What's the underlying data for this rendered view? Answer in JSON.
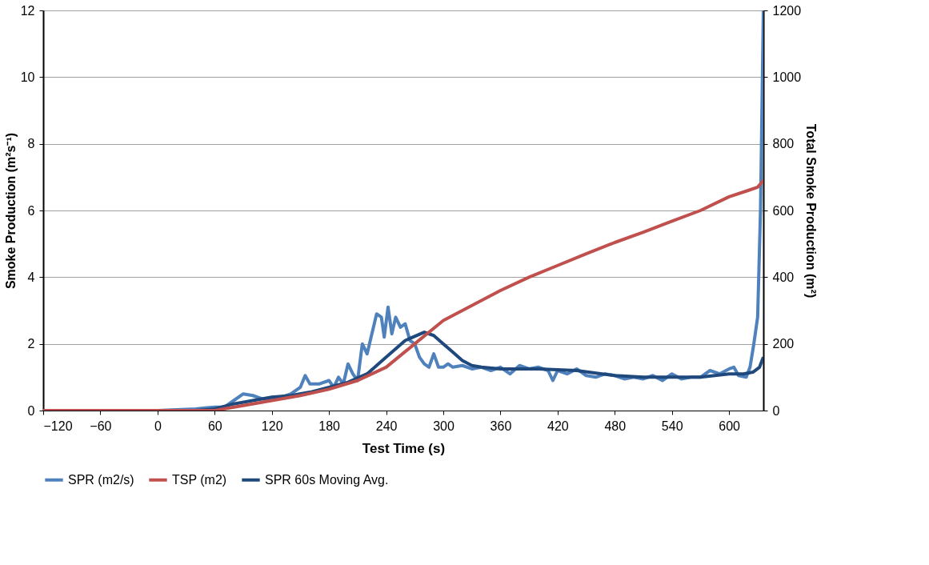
{
  "chart_data": {
    "type": "line",
    "xlabel": "Test Time (s)",
    "ylabel": "Smoke Production (m²s⁻¹)",
    "y2label": "Total Smoke Production (m²)",
    "xlim": [
      -120,
      636
    ],
    "xticks": [
      -120,
      -60,
      0,
      60,
      120,
      180,
      240,
      300,
      360,
      420,
      480,
      540,
      600
    ],
    "ylim": [
      0,
      12
    ],
    "yticks": [
      0,
      2,
      4,
      6,
      8,
      10,
      12
    ],
    "y2lim": [
      0,
      1200
    ],
    "y2ticks": [
      0,
      200,
      400,
      600,
      800,
      1000,
      1200
    ],
    "grid": "y",
    "legend": "bottom",
    "line_style": "solid",
    "marker": "none",
    "series": [
      {
        "name": "SPR (m2/s)",
        "color": "#4f81bd",
        "x": [
          -66,
          0,
          40,
          50,
          60,
          70,
          80,
          90,
          100,
          110,
          120,
          130,
          140,
          150,
          155,
          160,
          170,
          180,
          185,
          190,
          195,
          200,
          205,
          210,
          215,
          220,
          225,
          230,
          235,
          238,
          242,
          246,
          250,
          255,
          260,
          265,
          270,
          275,
          280,
          285,
          290,
          295,
          300,
          305,
          310,
          320,
          330,
          340,
          350,
          360,
          370,
          380,
          390,
          400,
          410,
          415,
          420,
          430,
          440,
          450,
          460,
          470,
          480,
          490,
          500,
          510,
          520,
          530,
          540,
          550,
          560,
          570,
          580,
          590,
          600,
          605,
          610,
          618,
          622,
          626,
          630,
          633,
          636
        ],
        "values": [
          0,
          0,
          0.05,
          0.08,
          0.1,
          0.1,
          0.3,
          0.5,
          0.45,
          0.35,
          0.35,
          0.4,
          0.5,
          0.7,
          1.05,
          0.8,
          0.8,
          0.9,
          0.7,
          1.0,
          0.8,
          1.4,
          1.1,
          0.9,
          2.0,
          1.7,
          2.3,
          2.9,
          2.8,
          2.2,
          3.1,
          2.3,
          2.8,
          2.5,
          2.6,
          2.1,
          2.0,
          1.6,
          1.4,
          1.3,
          1.7,
          1.3,
          1.3,
          1.4,
          1.3,
          1.35,
          1.25,
          1.3,
          1.2,
          1.3,
          1.1,
          1.35,
          1.25,
          1.3,
          1.2,
          0.9,
          1.2,
          1.1,
          1.25,
          1.05,
          1.0,
          1.1,
          1.05,
          0.95,
          1.0,
          0.95,
          1.05,
          0.9,
          1.1,
          0.95,
          1.0,
          1.0,
          1.2,
          1.1,
          1.25,
          1.3,
          1.05,
          1.0,
          1.3,
          2.0,
          2.8,
          6,
          12
        ]
      },
      {
        "name": "TSP (m2)",
        "color": "#c0504d",
        "axis": "y2",
        "x": [
          -120,
          -66,
          0,
          60,
          90,
          120,
          150,
          180,
          210,
          240,
          270,
          300,
          330,
          360,
          390,
          420,
          450,
          480,
          510,
          540,
          570,
          600,
          620,
          630,
          636
        ],
        "values": [
          0,
          0,
          0,
          0,
          15,
          30,
          45,
          64,
          90,
          130,
          200,
          270,
          315,
          360,
          400,
          435,
          470,
          504,
          535,
          568,
          600,
          641,
          660,
          670,
          690
        ]
      },
      {
        "name": "SPR 60s Moving Avg.",
        "color": "#1f497d",
        "x": [
          -66,
          0,
          40,
          60,
          80,
          100,
          120,
          140,
          160,
          180,
          200,
          220,
          240,
          260,
          280,
          290,
          300,
          310,
          320,
          330,
          340,
          360,
          400,
          440,
          480,
          510,
          540,
          570,
          600,
          615,
          625,
          632,
          636
        ],
        "values": [
          0,
          0,
          0,
          0.05,
          0.2,
          0.3,
          0.4,
          0.45,
          0.55,
          0.7,
          0.85,
          1.1,
          1.6,
          2.1,
          2.35,
          2.25,
          2.0,
          1.75,
          1.5,
          1.35,
          1.3,
          1.25,
          1.25,
          1.2,
          1.05,
          1.0,
          1.0,
          1.0,
          1.1,
          1.1,
          1.15,
          1.3,
          1.6
        ]
      }
    ]
  }
}
